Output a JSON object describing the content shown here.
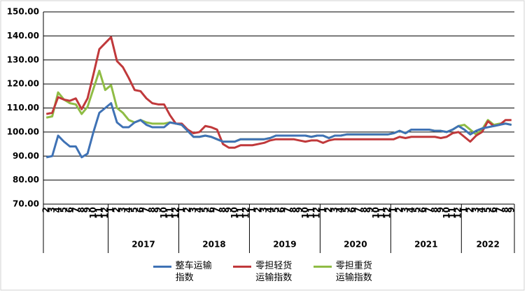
{
  "chart_data": {
    "type": "line",
    "categories": [
      "2",
      "3",
      "4",
      "5",
      "6",
      "7",
      "8",
      "9",
      "10",
      "11",
      "12",
      "1",
      "2",
      "3",
      "4",
      "5",
      "6",
      "7",
      "8",
      "9",
      "10",
      "11",
      "12",
      "1",
      "2",
      "3",
      "4",
      "5",
      "6",
      "7",
      "8",
      "9",
      "10",
      "11",
      "12",
      "1",
      "2",
      "3",
      "4",
      "5",
      "6",
      "7",
      "8",
      "9",
      "10",
      "11",
      "12",
      "1",
      "2",
      "3",
      "4",
      "5",
      "6",
      "7",
      "8",
      "9",
      "10",
      "11",
      "12",
      "1",
      "2",
      "3",
      "4",
      "5",
      "6",
      "7",
      "8",
      "9",
      "10",
      "11",
      "12",
      "1",
      "2",
      "3",
      "4",
      "5",
      "6",
      "7",
      "8",
      "9"
    ],
    "group_labels": [
      null,
      "2017",
      "2018",
      "2019",
      "2020",
      "2021",
      "2022"
    ],
    "group_sizes": [
      11,
      12,
      12,
      12,
      12,
      12,
      9
    ],
    "series": [
      {
        "name": "整车运输指数",
        "color": "#3f72b5",
        "values": [
          89.5,
          90,
          98.5,
          96,
          94,
          94,
          89.5,
          91,
          100,
          108,
          110,
          112,
          104,
          102,
          102,
          104,
          105,
          103,
          102,
          102,
          102,
          104,
          103.5,
          103,
          100.5,
          98,
          98,
          98.5,
          98,
          97,
          96,
          96,
          96,
          97,
          97,
          97,
          97,
          97,
          97.5,
          98.5,
          98.5,
          98.5,
          98.5,
          98.5,
          98.5,
          98,
          98.5,
          98.5,
          97.5,
          98.5,
          98.5,
          99,
          99,
          99,
          99,
          99,
          99,
          99,
          99,
          99.5,
          100.5,
          99.5,
          101,
          101,
          101,
          101,
          100.5,
          100.5,
          100,
          101,
          102.5,
          101,
          99,
          100.5,
          101.5,
          102,
          102.5,
          103,
          103.5,
          103
        ]
      },
      {
        "name": "零担轻货运输指数",
        "color": "#c0393b",
        "values": [
          107.5,
          108,
          114.5,
          113.5,
          113,
          114,
          109.5,
          114,
          124,
          134.5,
          137,
          139.5,
          129.5,
          127,
          122.5,
          117.5,
          117,
          114,
          112,
          111.5,
          111.5,
          107,
          103.5,
          103.5,
          101,
          99.5,
          100,
          102.5,
          102,
          101,
          95,
          93.5,
          93.5,
          94.5,
          94.5,
          94.5,
          95,
          95.5,
          96.5,
          97,
          97,
          97,
          97,
          96.5,
          96,
          96.5,
          96.5,
          95.5,
          96.5,
          97,
          97,
          97,
          97,
          97,
          97,
          97,
          97,
          97,
          97,
          97,
          98,
          97.5,
          98,
          98,
          98,
          98,
          98,
          97.5,
          98,
          99.5,
          100,
          98,
          96,
          98.5,
          100,
          104.5,
          102.5,
          103,
          105,
          105
        ]
      },
      {
        "name": "零担重货运输指数",
        "color": "#8fbc45",
        "values": [
          106,
          106.5,
          116.5,
          113.5,
          112,
          111.5,
          107.5,
          110.5,
          118,
          125.5,
          117.5,
          119.5,
          110,
          108,
          105,
          104,
          105,
          104,
          103.5,
          103.5,
          103.5,
          104,
          103.5,
          103,
          100.5,
          98,
          98,
          98.5,
          98,
          97,
          96,
          96,
          96,
          97,
          97,
          97,
          97,
          97,
          97.5,
          98.5,
          98.5,
          98.5,
          98.5,
          98.5,
          98.5,
          98,
          98.5,
          98.5,
          97.5,
          98.5,
          98.5,
          99,
          99,
          99,
          99,
          99,
          99,
          99,
          99,
          99.5,
          100.5,
          99.5,
          101,
          101,
          101,
          101,
          100.5,
          100.5,
          100,
          101,
          102.5,
          103,
          101,
          99,
          101,
          105,
          103,
          103.5,
          103.5,
          103
        ]
      }
    ],
    "ylim": [
      70,
      150
    ],
    "yticks": [
      {
        "value": 70,
        "label": "70.00"
      },
      {
        "value": 80,
        "label": "80.00"
      },
      {
        "value": 90,
        "label": "90.00"
      },
      {
        "value": 100,
        "label": "100.00"
      },
      {
        "value": 110,
        "label": "110.00"
      },
      {
        "value": 120,
        "label": "120.00"
      },
      {
        "value": 130,
        "label": "130.00"
      },
      {
        "value": 140,
        "label": "140.00"
      },
      {
        "value": 150,
        "label": "150.00"
      }
    ],
    "grid": true
  }
}
